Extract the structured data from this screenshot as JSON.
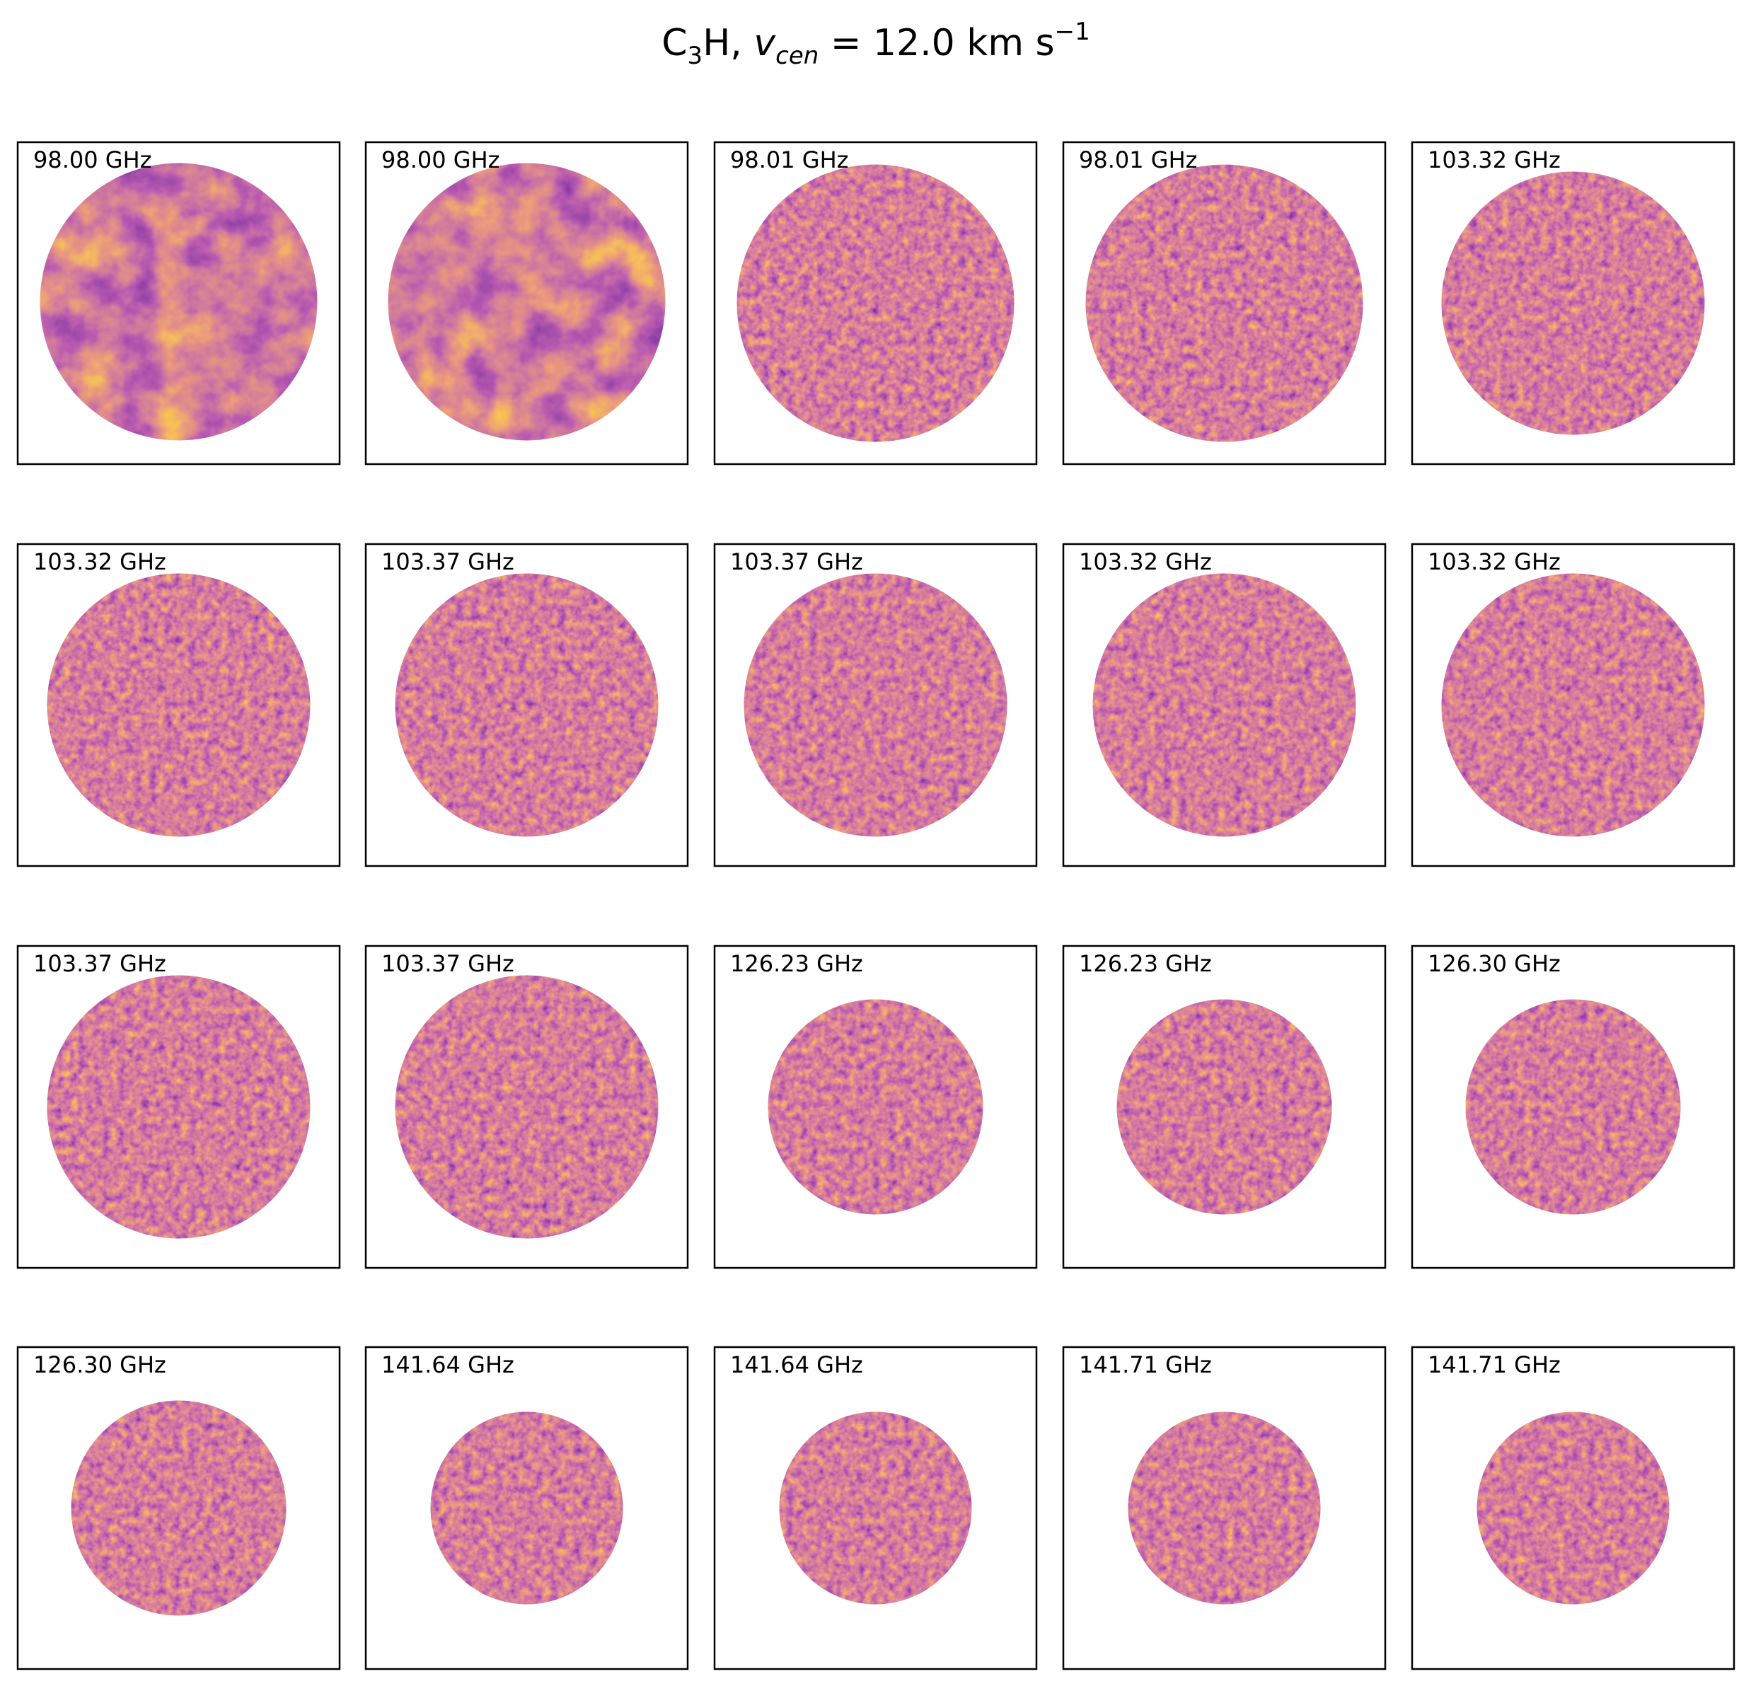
{
  "chart_data": {
    "type": "image_grid",
    "title": "C3H, v_cen = 12.0 km s^-1",
    "title_parts": {
      "species": "C",
      "species_sub": "3",
      "species_end": "H, ",
      "var": "v",
      "var_sub": "cen",
      "eq": " =  12.0 km s",
      "exp": "−1"
    },
    "colormap": "inferno",
    "rows": 4,
    "cols": 5,
    "panels": [
      {
        "label": "98.00 GHz",
        "pattern": "structured"
      },
      {
        "label": "98.00 GHz",
        "pattern": "structured"
      },
      {
        "label": "98.01 GHz",
        "pattern": "noise"
      },
      {
        "label": "98.01 GHz",
        "pattern": "noise"
      },
      {
        "label": "103.32 GHz",
        "pattern": "noise"
      },
      {
        "label": "103.32 GHz",
        "pattern": "noise"
      },
      {
        "label": "103.37 GHz",
        "pattern": "noise"
      },
      {
        "label": "103.37 GHz",
        "pattern": "noise"
      },
      {
        "label": "103.32 GHz",
        "pattern": "noise"
      },
      {
        "label": "103.32 GHz",
        "pattern": "noise"
      },
      {
        "label": "103.37 GHz",
        "pattern": "noise"
      },
      {
        "label": "103.37 GHz",
        "pattern": "noise"
      },
      {
        "label": "126.23 GHz",
        "pattern": "noise"
      },
      {
        "label": "126.23 GHz",
        "pattern": "noise"
      },
      {
        "label": "126.30 GHz",
        "pattern": "noise"
      },
      {
        "label": "126.30 GHz",
        "pattern": "noise"
      },
      {
        "label": "141.64 GHz",
        "pattern": "noise"
      },
      {
        "label": "141.64 GHz",
        "pattern": "noise"
      },
      {
        "label": "141.71 GHz",
        "pattern": "noise"
      },
      {
        "label": "141.71 GHz",
        "pattern": "noise"
      }
    ]
  }
}
